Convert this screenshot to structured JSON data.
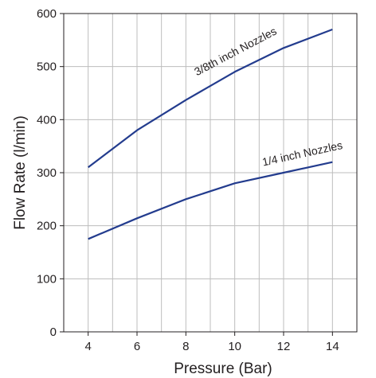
{
  "chart_data": {
    "type": "line",
    "xlabel": "Pressure (Bar)",
    "ylabel": "Flow Rate (l/min)",
    "xlim": [
      3,
      15
    ],
    "ylim": [
      0,
      600
    ],
    "x_ticks": [
      4,
      6,
      8,
      10,
      12,
      14
    ],
    "y_ticks": [
      0,
      100,
      200,
      300,
      400,
      500,
      600
    ],
    "grid": true,
    "line_color": "#233c8e",
    "series": [
      {
        "label": "3/8th inch Nozzles",
        "x": [
          4,
          6,
          8,
          10,
          12,
          14
        ],
        "y": [
          310,
          380,
          437,
          490,
          535,
          570
        ]
      },
      {
        "label": "1/4 inch Nozzles",
        "x": [
          4,
          6,
          8,
          10,
          12,
          14
        ],
        "y": [
          175,
          214,
          250,
          280,
          300,
          320
        ]
      }
    ]
  }
}
